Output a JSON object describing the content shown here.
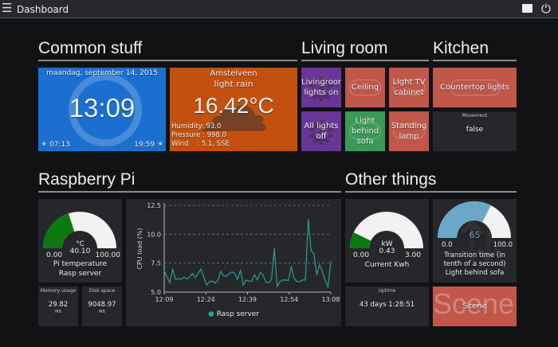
{
  "header": {
    "title": "Dashboard",
    "menu_icon": "hamburger-icon",
    "screen_icon": "screen-icon",
    "power_icon": "power-icon"
  },
  "sections": {
    "common": "Common stuff",
    "living": "Living room",
    "kitchen": "Kitchen",
    "pi": "Raspberry Pi",
    "other": "Other things"
  },
  "clock": {
    "date": "maandag, september 14, 2015",
    "time": "13:09",
    "sunrise": "07:13",
    "sunset": "19:59",
    "color": "#1a6fd0"
  },
  "weather": {
    "city": "Amstelveen",
    "desc": "light rain",
    "temp": "16.42°C",
    "humidity": "Humidity: 93.0",
    "pressure": "Pressure : 998.0",
    "wind_label": "Wind",
    "wind": ": 5.1, SSE",
    "color": "#c4500f"
  },
  "living": {
    "btn1": "Livingroom lights on",
    "btn2": "Ceiling",
    "btn3": "Light TV cabinet",
    "btn4": "All lights off",
    "btn5": "Light behind sofa",
    "btn6": "Standing lamp"
  },
  "kitchen": {
    "countertop": "Countertop lights",
    "movement_title": "Movement",
    "movement_value": "false"
  },
  "pi_temp": {
    "unit": "°C",
    "value": "40.10",
    "min": "0.00",
    "max": "100.00",
    "fraction": 0.401,
    "label1": "Pi temperature",
    "label2": "Rasp server",
    "color": "#0a7a10"
  },
  "memory": {
    "title": "Memory usage",
    "value": "29.82",
    "unit": "MB"
  },
  "disk": {
    "title": "Disk space",
    "value": "9048.97",
    "unit": "MB"
  },
  "kwh": {
    "unit": "kW",
    "value": "0.43",
    "min": "0.00",
    "max": "3.00",
    "fraction": 0.143,
    "label": "Current Kwh",
    "color": "#0a7a10"
  },
  "transition": {
    "value": "65",
    "min": "0.0",
    "max": "100.0",
    "fraction": 0.65,
    "label1": "Transition time (in",
    "label2": "tenth of a second)",
    "label3": "Light behind sofa",
    "color": "#6ba8c8"
  },
  "uptime": {
    "title": "Uptime",
    "value": "43 days 1:28:51"
  },
  "scene": {
    "bg_text": "Scene",
    "label": "Scene"
  },
  "chart_data": {
    "type": "line",
    "ylabel": "CPU load (%)",
    "ylim": [
      5.0,
      12.5
    ],
    "yticks": [
      "5.0",
      "7.5",
      "10.0",
      "12.5"
    ],
    "xticks": [
      "12:09",
      "12:24",
      "12:39",
      "12:54",
      "13:08"
    ],
    "grid": "horizontal dashed",
    "legend": "bottom",
    "color": "#2a9d94",
    "series": [
      {
        "name": "Rasp server",
        "start": "12:09",
        "end": "13:08",
        "values": [
          6.85,
          6.3,
          5.8,
          7.0,
          6.1,
          6.15,
          6.1,
          6.3,
          6.15,
          6.3,
          6.6,
          6.25,
          6.6,
          7.0,
          6.3,
          5.6,
          5.9,
          5.95,
          5.8,
          6.0,
          6.8,
          6.4,
          6.4,
          6.6,
          6.75,
          6.6,
          6.1,
          6.9,
          5.6,
          6.05,
          5.95,
          5.95,
          6.5,
          6.05,
          6.7,
          6.5,
          5.85,
          5.8,
          6.1,
          8.8,
          5.5,
          5.9,
          6.05,
          6.05,
          6.0,
          7.2,
          6.2,
          5.9,
          5.9,
          6.05,
          6.05,
          11.3,
          8.6,
          8.3,
          6.5,
          7.35,
          6.8,
          6.0,
          5.45,
          7.65
        ]
      }
    ]
  }
}
